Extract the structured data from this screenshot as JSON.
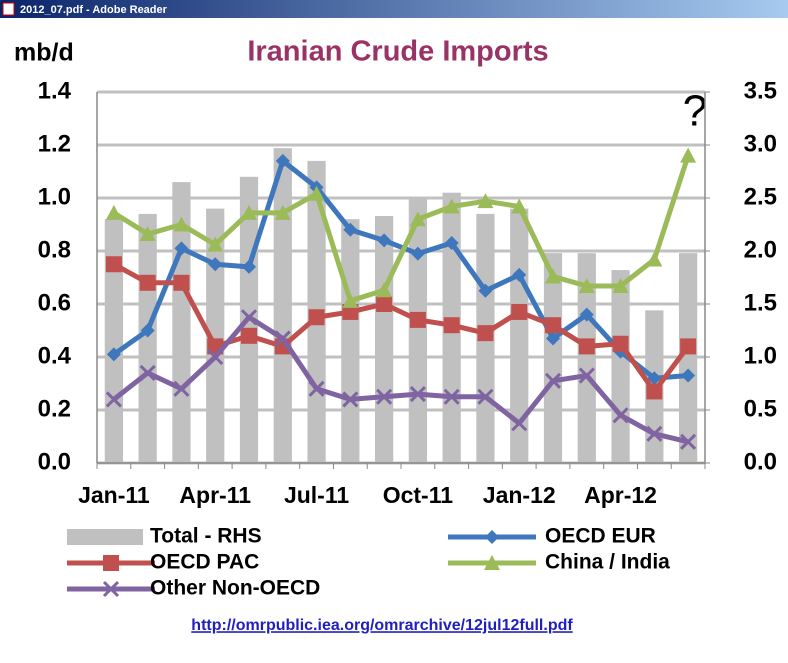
{
  "window": {
    "title": "2012_07.pdf - Adobe Reader"
  },
  "chart_data": {
    "type": "bar-line",
    "title": "Iranian Crude Imports",
    "y_label": "mb/d",
    "annotation": "?",
    "categories": [
      "Jan-11",
      null,
      null,
      "Apr-11",
      null,
      null,
      "Jul-11",
      null,
      null,
      "Oct-11",
      null,
      null,
      "Jan-12",
      null,
      null,
      "Apr-12",
      null,
      null
    ],
    "ylim": [
      0,
      1.4
    ],
    "yticks": [
      {
        "value": 0,
        "label": "0.0"
      },
      {
        "value": 0.2,
        "label": "0.2"
      },
      {
        "value": 0.4,
        "label": "0.4"
      },
      {
        "value": 0.6,
        "label": "0.6"
      },
      {
        "value": 0.8,
        "label": "0.8"
      },
      {
        "value": 1,
        "label": "1.0"
      },
      {
        "value": 1.2,
        "label": "1.2"
      },
      {
        "value": 1.4,
        "label": "1.4"
      }
    ],
    "y2lim": [
      0,
      3.5
    ],
    "y2ticks": [
      {
        "value": 0,
        "label": "0.0"
      },
      {
        "value": 0.5,
        "label": "0.5"
      },
      {
        "value": 1,
        "label": "1.0"
      },
      {
        "value": 1.5,
        "label": "1.5"
      },
      {
        "value": 2,
        "label": "2.0"
      },
      {
        "value": 2.5,
        "label": "2.5"
      },
      {
        "value": 3,
        "label": "3.0"
      },
      {
        "value": 3.5,
        "label": "3.5"
      }
    ],
    "grid": true,
    "series": [
      {
        "name": "Total - RHS",
        "type": "bar",
        "axis": "y2",
        "color": "#c0c0c0",
        "values": [
          2.3,
          2.35,
          2.65,
          2.4,
          2.7,
          2.97,
          2.85,
          2.3,
          2.33,
          2.5,
          2.55,
          2.35,
          2.4,
          1.98,
          1.98,
          1.82,
          1.44,
          1.98
        ]
      },
      {
        "name": "OECD EUR",
        "type": "line",
        "marker": "diamond",
        "color": "#3f77bc",
        "values": [
          0.41,
          0.5,
          0.81,
          0.75,
          0.74,
          1.14,
          1.04,
          0.88,
          0.84,
          0.79,
          0.83,
          0.65,
          0.71,
          0.47,
          0.56,
          0.42,
          0.32,
          0.33
        ]
      },
      {
        "name": "OECD PAC",
        "type": "line",
        "marker": "square",
        "color": "#c0504d",
        "values": [
          0.75,
          0.68,
          0.68,
          0.44,
          0.48,
          0.44,
          0.55,
          0.57,
          0.6,
          0.54,
          0.52,
          0.49,
          0.57,
          0.52,
          0.44,
          0.45,
          0.27,
          0.44
        ]
      },
      {
        "name": "China / India",
        "type": "line",
        "marker": "triangle",
        "axis": "y2",
        "color": "#9bbb59",
        "values": [
          2.36,
          2.16,
          2.25,
          2.06,
          2.36,
          2.36,
          2.54,
          1.53,
          1.63,
          2.3,
          2.42,
          2.47,
          2.42,
          1.76,
          1.67,
          1.67,
          1.92,
          2.9
        ]
      },
      {
        "name": "Other Non-OECD",
        "type": "line",
        "marker": "cross",
        "color": "#8064a2",
        "values": [
          0.24,
          0.34,
          0.28,
          0.4,
          0.55,
          0.47,
          0.28,
          0.24,
          0.25,
          0.26,
          0.25,
          0.25,
          0.15,
          0.31,
          0.33,
          0.18,
          0.11,
          0.08
        ]
      }
    ]
  },
  "source_link": "http://omrpublic.iea.org/omrarchive/12jul12full.pdf"
}
